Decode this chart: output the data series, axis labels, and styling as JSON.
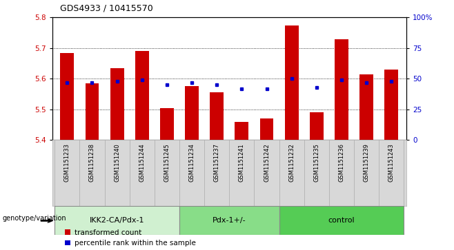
{
  "title": "GDS4933 / 10415570",
  "samples": [
    "GSM1151233",
    "GSM1151238",
    "GSM1151240",
    "GSM1151244",
    "GSM1151245",
    "GSM1151234",
    "GSM1151237",
    "GSM1151241",
    "GSM1151242",
    "GSM1151232",
    "GSM1151235",
    "GSM1151236",
    "GSM1151239",
    "GSM1151243"
  ],
  "red_values": [
    5.685,
    5.585,
    5.635,
    5.69,
    5.505,
    5.575,
    5.555,
    5.46,
    5.47,
    5.775,
    5.49,
    5.73,
    5.615,
    5.63
  ],
  "blue_percentile": [
    47,
    47,
    48,
    49,
    45,
    47,
    45,
    42,
    42,
    50,
    43,
    49,
    47,
    48
  ],
  "groups": [
    {
      "label": "IKK2-CA/Pdx-1",
      "start": 0,
      "end": 5,
      "color": "#d0f0d0"
    },
    {
      "label": "Pdx-1+/-",
      "start": 5,
      "end": 9,
      "color": "#88dd88"
    },
    {
      "label": "control",
      "start": 9,
      "end": 14,
      "color": "#55cc55"
    }
  ],
  "bar_bottom": 5.4,
  "ylim_left": [
    5.4,
    5.8
  ],
  "ylim_right": [
    0,
    100
  ],
  "yticks_left": [
    5.4,
    5.5,
    5.6,
    5.7,
    5.8
  ],
  "yticks_right": [
    0,
    25,
    50,
    75,
    100
  ],
  "ytick_labels_right": [
    "0",
    "25",
    "50",
    "75",
    "100%"
  ],
  "red_color": "#cc0000",
  "blue_color": "#0000cc",
  "bar_width": 0.55,
  "legend_label_red": "transformed count",
  "legend_label_blue": "percentile rank within the sample",
  "xlabel_group": "genotype/variation",
  "bg_color": "#d8d8d8",
  "grid_lines": [
    5.5,
    5.6,
    5.7
  ]
}
